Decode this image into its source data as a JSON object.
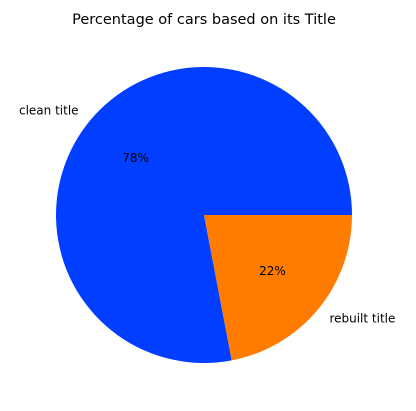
{
  "chart_data": {
    "type": "pie",
    "title": "Percentage of cars based on its Title",
    "categories": [
      "clean title",
      "rebuilt title"
    ],
    "values": [
      78,
      22
    ],
    "value_labels": [
      "78%",
      "22%"
    ],
    "colors": [
      "#023eff",
      "#ff7c00"
    ],
    "start_angle_deg": 0,
    "direction": "counterclockwise",
    "legend": "none"
  }
}
